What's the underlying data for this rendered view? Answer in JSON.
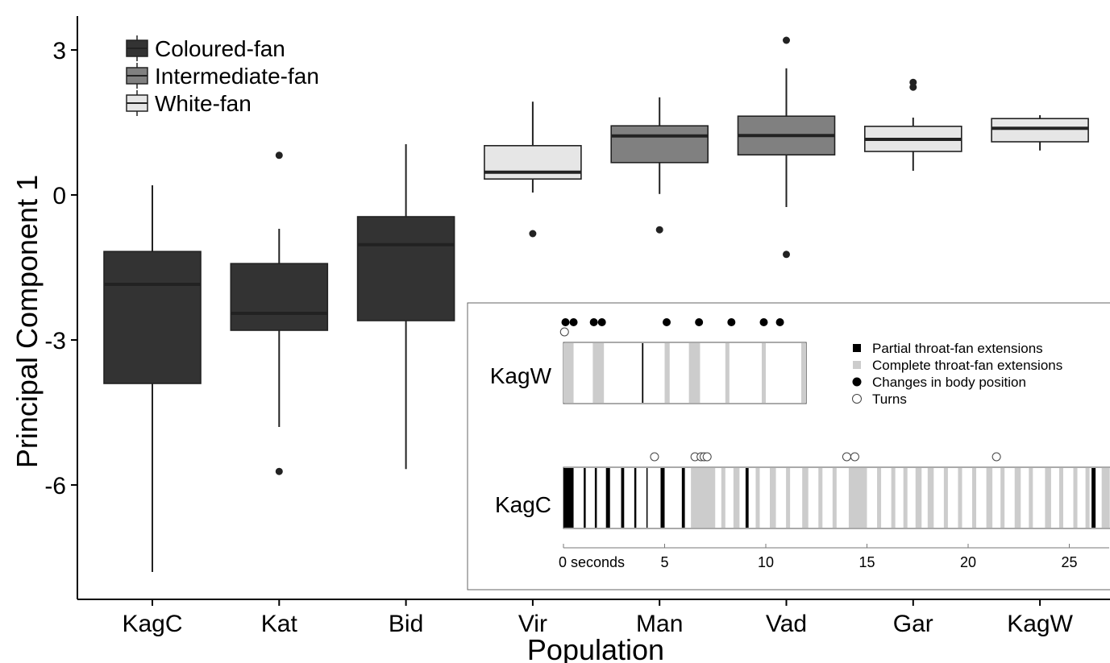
{
  "chart_data": [
    {
      "type": "boxplot",
      "xlabel": "Population",
      "ylabel": "Principal Component 1",
      "ylim": [
        -8.4,
        3.7
      ],
      "yticks": [
        3,
        0,
        -3,
        -6
      ],
      "ytick_labels": [
        "3",
        "0",
        "-3",
        "-6"
      ],
      "grid": false,
      "legend_position": "top-left",
      "legend": [
        {
          "name": "Coloured-fan",
          "color": "#333333"
        },
        {
          "name": "Intermediate-fan",
          "color": "#808080"
        },
        {
          "name": "White-fan",
          "color": "#e6e6e6"
        }
      ],
      "categories": [
        "KagC",
        "Kat",
        "Bid",
        "Vir",
        "Man",
        "Vad",
        "Gar",
        "KagW"
      ],
      "boxes": [
        {
          "population": "KagC",
          "group": "Coloured-fan",
          "whisker_low": -7.8,
          "q1": -3.9,
          "median": -1.85,
          "q3": -1.17,
          "whisker_high": 0.2,
          "outliers": []
        },
        {
          "population": "Kat",
          "group": "Coloured-fan",
          "whisker_low": -4.8,
          "q1": -2.8,
          "median": -2.45,
          "q3": -1.42,
          "whisker_high": -0.7,
          "outliers": [
            0.82,
            -5.72
          ]
        },
        {
          "population": "Bid",
          "group": "Coloured-fan",
          "whisker_low": -5.67,
          "q1": -2.6,
          "median": -1.03,
          "q3": -0.45,
          "whisker_high": 1.05,
          "outliers": []
        },
        {
          "population": "Vir",
          "group": "White-fan",
          "whisker_low": 0.05,
          "q1": 0.33,
          "median": 0.47,
          "q3": 1.02,
          "whisker_high": 1.93,
          "outliers": [
            -0.8
          ]
        },
        {
          "population": "Man",
          "group": "Intermediate-fan",
          "whisker_low": 0.02,
          "q1": 0.67,
          "median": 1.22,
          "q3": 1.43,
          "whisker_high": 2.02,
          "outliers": [
            -0.72
          ]
        },
        {
          "population": "Vad",
          "group": "Intermediate-fan",
          "whisker_low": -0.25,
          "q1": 0.83,
          "median": 1.23,
          "q3": 1.63,
          "whisker_high": 2.62,
          "outliers": [
            3.2,
            -1.23
          ]
        },
        {
          "population": "Gar",
          "group": "White-fan",
          "whisker_low": 0.5,
          "q1": 0.9,
          "median": 1.15,
          "q3": 1.42,
          "whisker_high": 1.6,
          "outliers": [
            2.33,
            2.23
          ]
        },
        {
          "population": "KagW",
          "group": "White-fan",
          "whisker_low": 0.92,
          "q1": 1.1,
          "median": 1.38,
          "q3": 1.58,
          "whisker_high": 1.65,
          "outliers": []
        }
      ]
    },
    {
      "type": "timeline",
      "xlabel": "",
      "xlim": [
        0,
        27
      ],
      "xticks": [
        0,
        5,
        10,
        15,
        20,
        25
      ],
      "xtick_labels": [
        "0 seconds",
        "5",
        "10",
        "15",
        "20",
        "25"
      ],
      "legend": [
        {
          "name": "Partial throat-fan extensions",
          "symbol": "square",
          "color": "#000000"
        },
        {
          "name": "Complete throat-fan extensions",
          "symbol": "square",
          "color": "#cccccc"
        },
        {
          "name": "Changes in body position",
          "symbol": "filled-circle",
          "color": "#000000"
        },
        {
          "name": "Turns",
          "symbol": "open-circle",
          "color": "#ffffff"
        }
      ],
      "tracks": [
        {
          "name": "KagW",
          "duration": 12,
          "partial_extensions": [
            [
              3.88,
              3.95
            ]
          ],
          "complete_extensions": [
            [
              0,
              0.5
            ],
            [
              1.45,
              2.0
            ],
            [
              5.0,
              5.25
            ],
            [
              6.2,
              6.75
            ],
            [
              8.0,
              8.2
            ],
            [
              9.8,
              10.0
            ],
            [
              11.75,
              11.95
            ]
          ],
          "body_position_changes": [
            0.1,
            0.5,
            1.5,
            1.9,
            5.1,
            6.7,
            8.3,
            9.9,
            10.7
          ],
          "turns": [
            0.05
          ]
        },
        {
          "name": "KagC",
          "duration": 27.6,
          "partial_extensions": [
            [
              0,
              0.5
            ],
            [
              1.0,
              1.1
            ],
            [
              1.55,
              1.65
            ],
            [
              2.1,
              2.3
            ],
            [
              2.85,
              3.0
            ],
            [
              3.5,
              3.6
            ],
            [
              4.1,
              4.15
            ],
            [
              4.8,
              5.0
            ],
            [
              5.85,
              6.0
            ],
            [
              9.0,
              9.15
            ],
            [
              26.1,
              26.3
            ]
          ],
          "complete_extensions": [
            [
              6.3,
              7.5
            ],
            [
              7.8,
              8.0
            ],
            [
              8.4,
              8.7
            ],
            [
              9.5,
              9.7
            ],
            [
              10.2,
              10.5
            ],
            [
              11.0,
              11.2
            ],
            [
              11.8,
              12.1
            ],
            [
              12.6,
              12.8
            ],
            [
              13.3,
              13.5
            ],
            [
              14.1,
              15.0
            ],
            [
              15.5,
              15.7
            ],
            [
              16.2,
              16.4
            ],
            [
              16.8,
              17.0
            ],
            [
              17.4,
              17.7
            ],
            [
              18.0,
              18.3
            ],
            [
              18.8,
              19.0
            ],
            [
              19.5,
              19.7
            ],
            [
              20.2,
              20.4
            ],
            [
              20.9,
              21.2
            ],
            [
              21.6,
              21.8
            ],
            [
              22.3,
              22.6
            ],
            [
              23.0,
              23.2
            ],
            [
              23.8,
              24.1
            ],
            [
              24.5,
              24.7
            ],
            [
              25.2,
              25.4
            ],
            [
              25.8,
              26.0
            ],
            [
              26.6,
              27.0
            ]
          ],
          "body_position_changes": [],
          "turns": [
            4.5,
            6.5,
            6.8,
            6.95,
            7.1,
            14.0,
            14.4,
            21.4
          ]
        }
      ]
    }
  ]
}
